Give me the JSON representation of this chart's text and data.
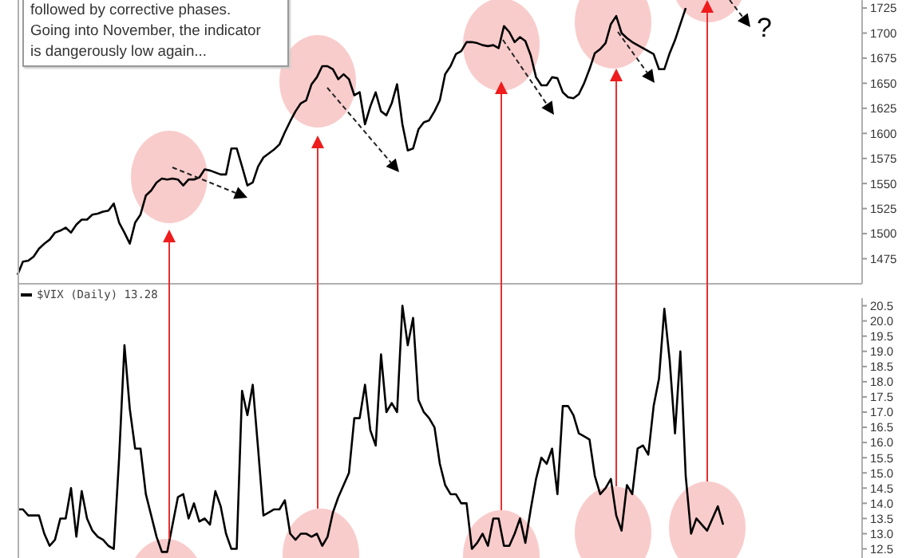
{
  "chart_data": [
    {
      "type": "line",
      "tick_labels": "y",
      "ylim": [
        1450,
        1733
      ],
      "yticks": [
        1475,
        1500,
        1525,
        1550,
        1575,
        1600,
        1625,
        1650,
        1675,
        1700,
        1725
      ],
      "annotations": [
        "followed by corrective phases.\nGoing into November, the indicator\nis dangerously low again...",
        "?"
      ],
      "categories": [
        null,
        null,
        null,
        null,
        null,
        null,
        null,
        null,
        null,
        null,
        null,
        null,
        null,
        null,
        null,
        null,
        null,
        null,
        null,
        null,
        null,
        null,
        null,
        null,
        null,
        null,
        null,
        null,
        null,
        null,
        null,
        null,
        null,
        null,
        null,
        null,
        null,
        null,
        null,
        null,
        null,
        null,
        null,
        null,
        null,
        null,
        null,
        null,
        null,
        null,
        null,
        null,
        null,
        null,
        null,
        null,
        null,
        null,
        null,
        null,
        null,
        null,
        null,
        null,
        null,
        null,
        null,
        null,
        null,
        null,
        null,
        null,
        null,
        null,
        null,
        null,
        null,
        null,
        null,
        null,
        null,
        null,
        null,
        null,
        null,
        null,
        null,
        null,
        null,
        null,
        null,
        null,
        null,
        null,
        null,
        null,
        null,
        null,
        null,
        null,
        null,
        null,
        null,
        null,
        null,
        null,
        null,
        null,
        null,
        null,
        null,
        null,
        null,
        null,
        null,
        null,
        null,
        null,
        null,
        null,
        null,
        null,
        null,
        null,
        null,
        null,
        null,
        null,
        null,
        null,
        null,
        null,
        null,
        null,
        null,
        null,
        null,
        null,
        null,
        null,
        null,
        null,
        null,
        null,
        null,
        null,
        null,
        null,
        null,
        null,
        null,
        null,
        null,
        null,
        null,
        null,
        null,
        null,
        null
      ],
      "series": [
        {
          "color": "#000000",
          "values": [
            1459,
            1472,
            1473,
            1477,
            1485,
            1490,
            1494,
            1501,
            1503,
            1506,
            1501,
            1509,
            1514,
            1514,
            1519,
            1520,
            1522,
            1523,
            1530,
            1511,
            1501,
            1490,
            1511,
            1519,
            1538,
            1543,
            1551,
            1555,
            1554,
            1555,
            1554,
            1548,
            1554,
            1554,
            1556,
            1564,
            1563,
            1561,
            1559,
            1559,
            1585,
            1585,
            1567,
            1548,
            1551,
            1567,
            1576,
            1580,
            1584,
            1589,
            1601,
            1612,
            1622,
            1630,
            1633,
            1649,
            1656,
            1667,
            1667,
            1664,
            1654,
            1659,
            1654,
            1638,
            1641,
            1609,
            1627,
            1641,
            1622,
            1618,
            1630,
            1649,
            1609,
            1583,
            1585,
            1604,
            1611,
            1613,
            1622,
            1633,
            1659,
            1667,
            1679,
            1682,
            1691,
            1691,
            1690,
            1688,
            1687,
            1688,
            1685,
            1707,
            1701,
            1691,
            1696,
            1692,
            1678,
            1656,
            1648,
            1648,
            1656,
            1655,
            1641,
            1636,
            1635,
            1639,
            1650,
            1664,
            1680,
            1684,
            1690,
            1709,
            1717,
            1700,
            1695,
            1691,
            1688,
            1685,
            1682,
            1679,
            1664,
            1664,
            1680,
            1693,
            1709,
            1725,
            null,
            null,
            null,
            null,
            null,
            null,
            null,
            null,
            null,
            null,
            null,
            null,
            null,
            null,
            null,
            null,
            null,
            null,
            null,
            null,
            null,
            null,
            null,
            null,
            null,
            null,
            null,
            null,
            null,
            null,
            null,
            null,
            null
          ]
        }
      ]
    },
    {
      "type": "line",
      "tick_labels": "y",
      "legend": "top left",
      "ylim": [
        12.2,
        20.75
      ],
      "yticks": [
        12.5,
        {
          "value": 13,
          "label": "13.0"
        },
        13.5,
        {
          "value": 14,
          "label": "14.0"
        },
        14.5,
        {
          "value": 15,
          "label": "15.0"
        },
        15.5,
        {
          "value": 16,
          "label": "16.0"
        },
        16.5,
        {
          "value": 17,
          "label": "17.0"
        },
        17.5,
        {
          "value": 18,
          "label": "18.0"
        },
        18.5,
        {
          "value": 19,
          "label": "19.0"
        },
        19.5,
        {
          "value": 20,
          "label": "20.0"
        },
        20.5
      ],
      "categories": [
        null,
        null,
        null,
        null,
        null,
        null,
        null,
        null,
        null,
        null,
        null,
        null,
        null,
        null,
        null,
        null,
        null,
        null,
        null,
        null,
        null,
        null,
        null,
        null,
        null,
        null,
        null,
        null,
        null,
        null,
        null,
        null,
        null,
        null,
        null,
        null,
        null,
        null,
        null,
        null,
        null,
        null,
        null,
        null,
        null,
        null,
        null,
        null,
        null,
        null,
        null,
        null,
        null,
        null,
        null,
        null,
        null,
        null,
        null,
        null,
        null,
        null,
        null,
        null,
        null,
        null,
        null,
        null,
        null,
        null,
        null,
        null,
        null,
        null,
        null,
        null,
        null,
        null,
        null,
        null,
        null,
        null,
        null,
        null,
        null,
        null,
        null,
        null,
        null,
        null,
        null,
        null,
        null,
        null,
        null,
        null,
        null,
        null,
        null,
        null,
        null,
        null,
        null,
        null,
        null,
        null,
        null,
        null,
        null,
        null,
        null,
        null,
        null,
        null,
        null,
        null,
        null,
        null,
        null,
        null,
        null,
        null,
        null,
        null,
        null,
        null,
        null,
        null,
        null,
        null,
        null,
        null,
        null,
        null,
        null,
        null,
        null,
        null,
        null,
        null,
        null,
        null,
        null,
        null,
        null,
        null,
        null,
        null,
        null,
        null,
        null,
        null,
        null,
        null,
        null,
        null,
        null,
        null,
        null
      ],
      "series": [
        {
          "name": "$VIX (Daily) 13.28",
          "color": "#000000",
          "values": [
            13.8,
            13.8,
            13.6,
            13.6,
            13.6,
            13.0,
            12.6,
            12.8,
            13.5,
            13.5,
            14.5,
            12.9,
            14.4,
            13.5,
            13.1,
            12.9,
            12.8,
            12.6,
            12.5,
            15.5,
            19.2,
            17.1,
            15.8,
            15.8,
            14.3,
            13.6,
            12.9,
            12.4,
            12.4,
            13.3,
            14.2,
            14.3,
            13.5,
            14.0,
            13.4,
            13.5,
            13.3,
            14.4,
            13.9,
            13.0,
            12.5,
            12.5,
            17.7,
            16.9,
            17.9,
            15.8,
            13.6,
            13.7,
            13.8,
            13.8,
            14.1,
            13.0,
            12.8,
            13.0,
            13.0,
            12.9,
            13.0,
            12.6,
            12.9,
            13.7,
            14.2,
            14.6,
            15.0,
            16.8,
            16.8,
            17.9,
            16.4,
            15.9,
            18.9,
            17.0,
            17.3,
            17.0,
            20.5,
            19.2,
            20.1,
            17.4,
            17.0,
            16.8,
            16.5,
            15.3,
            14.6,
            14.3,
            14.3,
            14.0,
            14.0,
            12.5,
            12.7,
            13.0,
            12.6,
            13.5,
            13.5,
            12.6,
            12.6,
            13.0,
            13.5,
            12.7,
            13.8,
            14.8,
            15.5,
            15.3,
            15.8,
            14.3,
            17.2,
            17.2,
            16.9,
            16.3,
            16.2,
            16.1,
            14.9,
            14.3,
            14.5,
            14.8,
            13.6,
            13.1,
            14.6,
            14.3,
            15.8,
            15.9,
            15.6,
            17.2,
            18.1,
            20.4,
            18.7,
            16.3,
            19.0,
            14.9,
            13.0,
            13.5,
            13.3,
            13.1,
            13.5,
            13.9,
            13.3,
            null,
            null,
            null,
            null,
            null,
            null,
            null,
            null,
            null,
            null,
            null,
            null,
            null,
            null,
            null,
            null,
            null,
            null,
            null,
            null,
            null,
            null,
            null,
            null,
            null,
            null
          ]
        }
      ]
    }
  ]
}
